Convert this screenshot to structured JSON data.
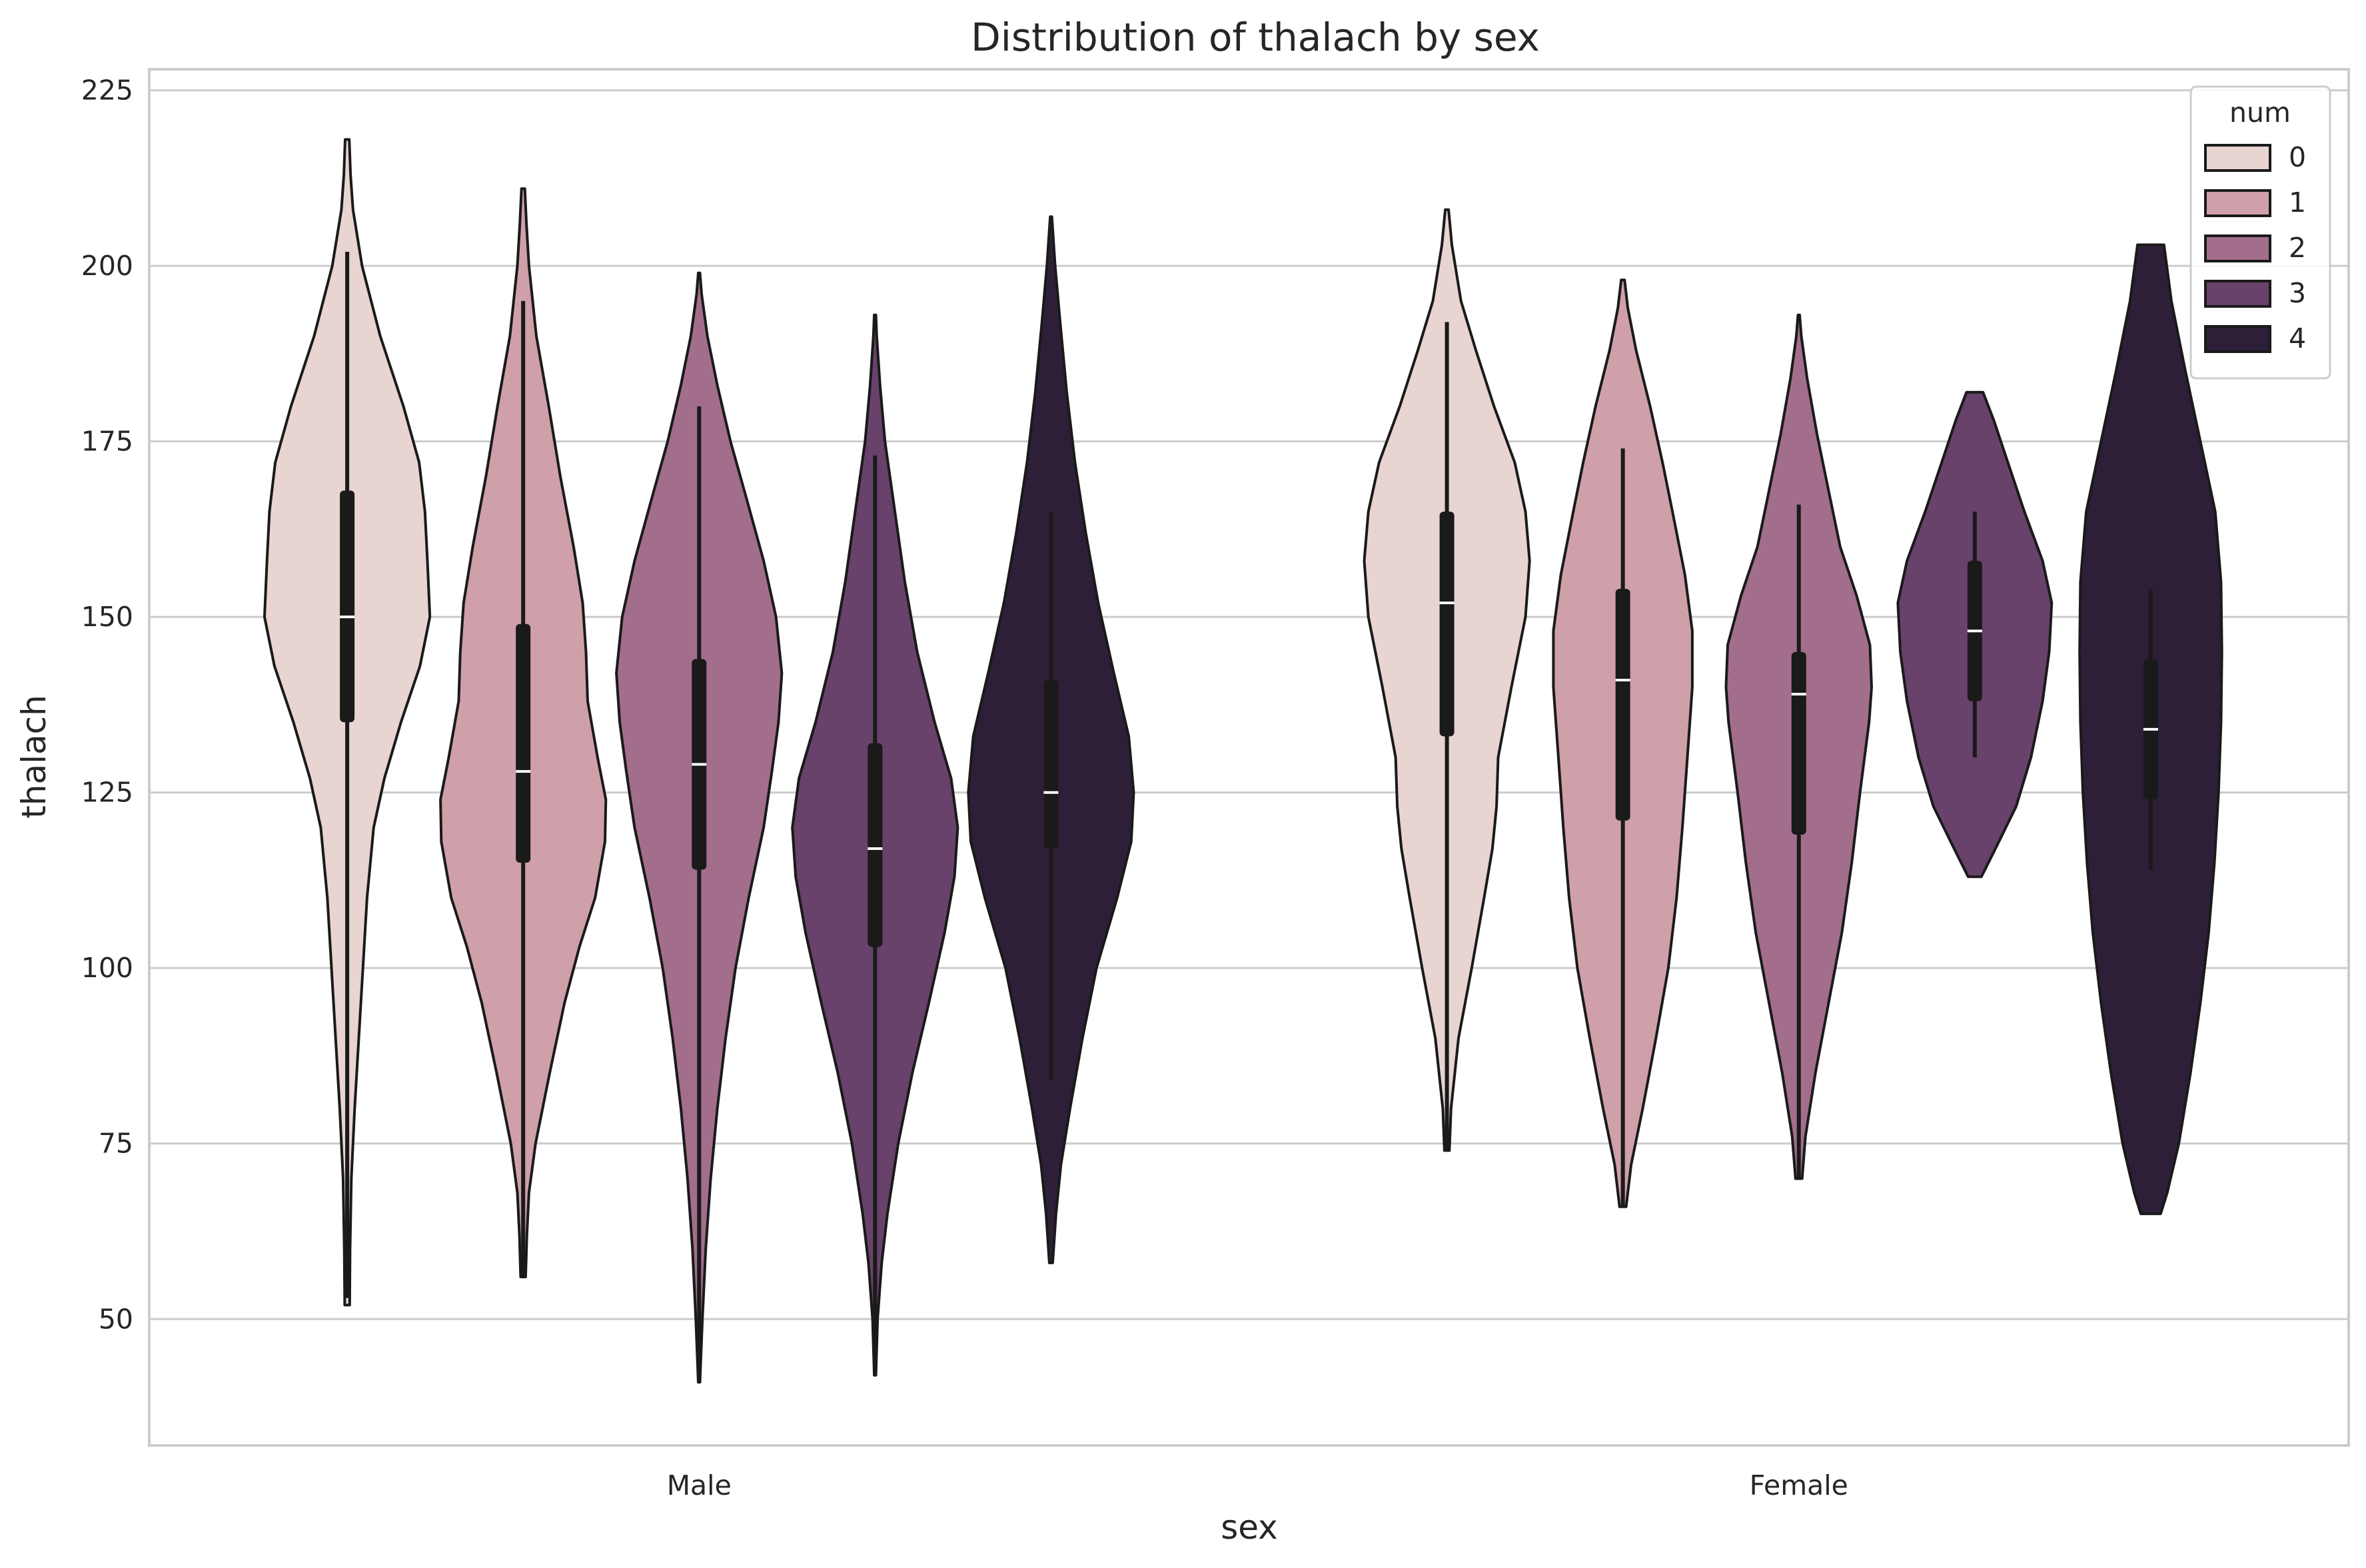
{
  "chart_data": {
    "type": "violin",
    "title": "Distribution of thalach by sex",
    "xlabel": "sex",
    "ylabel": "thalach",
    "categories": [
      "Male",
      "Female"
    ],
    "ylim": [
      32,
      228
    ],
    "yticks": [
      50,
      75,
      100,
      125,
      150,
      175,
      200,
      225
    ],
    "grid": true,
    "legend": {
      "title": "num",
      "placement": "top-right",
      "entries": [
        {
          "label": "0",
          "color": "#e8d4d0"
        },
        {
          "label": "1",
          "color": "#cfa0a9"
        },
        {
          "label": "2",
          "color": "#a26e8c"
        },
        {
          "label": "3",
          "color": "#68426a"
        },
        {
          "label": "4",
          "color": "#2e1f38"
        }
      ]
    },
    "series": [
      {
        "name": "0",
        "groups": [
          {
            "category": "Male",
            "min": 53,
            "q1": 135,
            "median": 150,
            "q3": 168,
            "max": 202,
            "whisker_low": 86,
            "whisker_high": 202,
            "extent": [
              52,
              218
            ],
            "profile": [
              [
                52,
                0.03
              ],
              [
                60,
                0.035
              ],
              [
                70,
                0.05
              ],
              [
                80,
                0.09
              ],
              [
                90,
                0.14
              ],
              [
                100,
                0.19
              ],
              [
                110,
                0.24
              ],
              [
                120,
                0.32
              ],
              [
                127,
                0.45
              ],
              [
                135,
                0.65
              ],
              [
                143,
                0.88
              ],
              [
                150,
                1.0
              ],
              [
                158,
                0.97
              ],
              [
                165,
                0.94
              ],
              [
                172,
                0.87
              ],
              [
                180,
                0.68
              ],
              [
                190,
                0.4
              ],
              [
                200,
                0.18
              ],
              [
                208,
                0.07
              ],
              [
                213,
                0.04
              ],
              [
                218,
                0.025
              ]
            ]
          },
          {
            "category": "Female",
            "min": 74,
            "q1": 133,
            "median": 152,
            "q3": 165,
            "max": 192,
            "whisker_low": 90,
            "whisker_high": 192,
            "extent": [
              74,
              208
            ],
            "profile": [
              [
                74,
                0.03
              ],
              [
                80,
                0.05
              ],
              [
                90,
                0.14
              ],
              [
                100,
                0.3
              ],
              [
                110,
                0.45
              ],
              [
                117,
                0.55
              ],
              [
                123,
                0.6
              ],
              [
                130,
                0.62
              ],
              [
                140,
                0.78
              ],
              [
                150,
                0.95
              ],
              [
                158,
                1.0
              ],
              [
                165,
                0.95
              ],
              [
                172,
                0.82
              ],
              [
                180,
                0.57
              ],
              [
                188,
                0.35
              ],
              [
                195,
                0.17
              ],
              [
                203,
                0.06
              ],
              [
                208,
                0.02
              ]
            ]
          }
        ]
      },
      {
        "name": "1",
        "groups": [
          {
            "category": "Male",
            "min": 56,
            "q1": 115,
            "median": 128,
            "q3": 149,
            "max": 195,
            "whisker_low": 72,
            "whisker_high": 195,
            "extent": [
              56,
              211
            ],
            "profile": [
              [
                56,
                0.03
              ],
              [
                62,
                0.045
              ],
              [
                68,
                0.07
              ],
              [
                75,
                0.15
              ],
              [
                85,
                0.32
              ],
              [
                95,
                0.5
              ],
              [
                103,
                0.68
              ],
              [
                110,
                0.87
              ],
              [
                118,
                0.99
              ],
              [
                124,
                1.0
              ],
              [
                130,
                0.9
              ],
              [
                138,
                0.78
              ],
              [
                145,
                0.76
              ],
              [
                152,
                0.72
              ],
              [
                160,
                0.61
              ],
              [
                170,
                0.45
              ],
              [
                180,
                0.31
              ],
              [
                190,
                0.16
              ],
              [
                200,
                0.07
              ],
              [
                206,
                0.04
              ],
              [
                211,
                0.02
              ]
            ]
          },
          {
            "category": "Female",
            "min": 66,
            "q1": 121,
            "median": 141,
            "q3": 154,
            "max": 174,
            "whisker_low": 90,
            "whisker_high": 174,
            "extent": [
              66,
              198
            ],
            "profile": [
              [
                66,
                0.04
              ],
              [
                72,
                0.1
              ],
              [
                80,
                0.24
              ],
              [
                90,
                0.4
              ],
              [
                100,
                0.55
              ],
              [
                110,
                0.65
              ],
              [
                120,
                0.72
              ],
              [
                130,
                0.78
              ],
              [
                140,
                0.84
              ],
              [
                148,
                0.84
              ],
              [
                156,
                0.75
              ],
              [
                165,
                0.6
              ],
              [
                172,
                0.48
              ],
              [
                180,
                0.33
              ],
              [
                188,
                0.16
              ],
              [
                194,
                0.06
              ],
              [
                198,
                0.02
              ]
            ]
          }
        ]
      },
      {
        "name": "2",
        "groups": [
          {
            "category": "Male",
            "min": 41,
            "q1": 114,
            "median": 129,
            "q3": 144,
            "max": 180,
            "whisker_low": 71,
            "whisker_high": 180,
            "extent": [
              41,
              199
            ],
            "profile": [
              [
                41,
                0.01
              ],
              [
                50,
                0.04
              ],
              [
                60,
                0.08
              ],
              [
                70,
                0.14
              ],
              [
                80,
                0.22
              ],
              [
                90,
                0.32
              ],
              [
                100,
                0.44
              ],
              [
                110,
                0.6
              ],
              [
                120,
                0.78
              ],
              [
                128,
                0.88
              ],
              [
                135,
                0.96
              ],
              [
                142,
                1.0
              ],
              [
                150,
                0.93
              ],
              [
                158,
                0.78
              ],
              [
                167,
                0.57
              ],
              [
                175,
                0.38
              ],
              [
                183,
                0.22
              ],
              [
                190,
                0.1
              ],
              [
                196,
                0.03
              ],
              [
                199,
                0.01
              ]
            ]
          },
          {
            "category": "Female",
            "min": 70,
            "q1": 119,
            "median": 139,
            "q3": 145,
            "max": 166,
            "whisker_low": 97,
            "whisker_high": 166,
            "extent": [
              70,
              193
            ],
            "profile": [
              [
                70,
                0.04
              ],
              [
                76,
                0.08
              ],
              [
                85,
                0.2
              ],
              [
                95,
                0.36
              ],
              [
                105,
                0.52
              ],
              [
                115,
                0.64
              ],
              [
                125,
                0.74
              ],
              [
                135,
                0.85
              ],
              [
                140,
                0.88
              ],
              [
                146,
                0.86
              ],
              [
                153,
                0.7
              ],
              [
                160,
                0.5
              ],
              [
                168,
                0.36
              ],
              [
                176,
                0.22
              ],
              [
                184,
                0.1
              ],
              [
                190,
                0.03
              ],
              [
                193,
                0.01
              ]
            ]
          }
        ]
      },
      {
        "name": "3",
        "groups": [
          {
            "category": "Male",
            "min": 42,
            "q1": 103,
            "median": 117,
            "q3": 132,
            "max": 173,
            "whisker_low": 63,
            "whisker_high": 173,
            "extent": [
              42,
              193
            ],
            "profile": [
              [
                42,
                0.01
              ],
              [
                50,
                0.03
              ],
              [
                58,
                0.08
              ],
              [
                65,
                0.15
              ],
              [
                75,
                0.28
              ],
              [
                85,
                0.45
              ],
              [
                95,
                0.65
              ],
              [
                105,
                0.84
              ],
              [
                113,
                0.96
              ],
              [
                120,
                1.0
              ],
              [
                127,
                0.92
              ],
              [
                135,
                0.72
              ],
              [
                145,
                0.51
              ],
              [
                155,
                0.36
              ],
              [
                165,
                0.24
              ],
              [
                175,
                0.12
              ],
              [
                183,
                0.06
              ],
              [
                190,
                0.02
              ],
              [
                193,
                0.01
              ]
            ]
          },
          {
            "category": "Female",
            "min": 130,
            "q1": 138,
            "median": 148,
            "q3": 158,
            "max": 165,
            "whisker_low": 130,
            "whisker_high": 165,
            "extent": [
              113,
              182
            ],
            "profile": [
              [
                113,
                0.08
              ],
              [
                117,
                0.25
              ],
              [
                123,
                0.5
              ],
              [
                130,
                0.68
              ],
              [
                138,
                0.82
              ],
              [
                145,
                0.9
              ],
              [
                152,
                0.93
              ],
              [
                158,
                0.82
              ],
              [
                165,
                0.6
              ],
              [
                172,
                0.4
              ],
              [
                178,
                0.23
              ],
              [
                182,
                0.1
              ]
            ]
          }
        ]
      },
      {
        "name": "4",
        "groups": [
          {
            "category": "Male",
            "min": 84,
            "q1": 117,
            "median": 125,
            "q3": 141,
            "max": 165,
            "whisker_low": 84,
            "whisker_high": 165,
            "extent": [
              58,
              207
            ],
            "profile": [
              [
                58,
                0.02
              ],
              [
                65,
                0.06
              ],
              [
                72,
                0.12
              ],
              [
                80,
                0.23
              ],
              [
                90,
                0.38
              ],
              [
                100,
                0.55
              ],
              [
                110,
                0.8
              ],
              [
                118,
                0.97
              ],
              [
                125,
                1.0
              ],
              [
                133,
                0.94
              ],
              [
                142,
                0.76
              ],
              [
                152,
                0.57
              ],
              [
                162,
                0.42
              ],
              [
                172,
                0.29
              ],
              [
                182,
                0.19
              ],
              [
                192,
                0.11
              ],
              [
                200,
                0.05
              ],
              [
                207,
                0.01
              ]
            ]
          },
          {
            "category": "Female",
            "min": 114,
            "q1": 124,
            "median": 134,
            "q3": 144,
            "max": 154,
            "whisker_low": 114,
            "whisker_high": 154,
            "extent": [
              65,
              203
            ],
            "profile": [
              [
                65,
                0.12
              ],
              [
                68,
                0.2
              ],
              [
                75,
                0.34
              ],
              [
                85,
                0.48
              ],
              [
                95,
                0.6
              ],
              [
                105,
                0.7
              ],
              [
                115,
                0.77
              ],
              [
                125,
                0.82
              ],
              [
                135,
                0.85
              ],
              [
                145,
                0.86
              ],
              [
                155,
                0.85
              ],
              [
                165,
                0.78
              ],
              [
                175,
                0.6
              ],
              [
                185,
                0.42
              ],
              [
                195,
                0.25
              ],
              [
                203,
                0.16
              ]
            ]
          }
        ]
      }
    ]
  }
}
